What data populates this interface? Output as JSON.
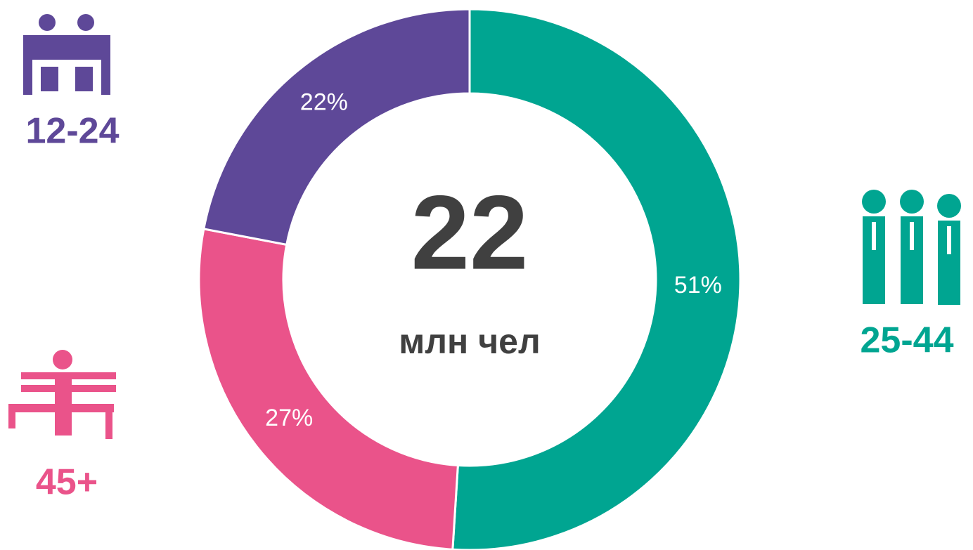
{
  "chart_data": {
    "type": "donut",
    "center_text": "22",
    "center_label": "млн чел",
    "categories": [
      "25-44",
      "45+",
      "12-24"
    ],
    "values": [
      51,
      27,
      22
    ],
    "value_labels": [
      "51%",
      "27%",
      "22%"
    ],
    "colors": [
      "#00a591",
      "#ea538a",
      "#5e4898"
    ]
  }
}
